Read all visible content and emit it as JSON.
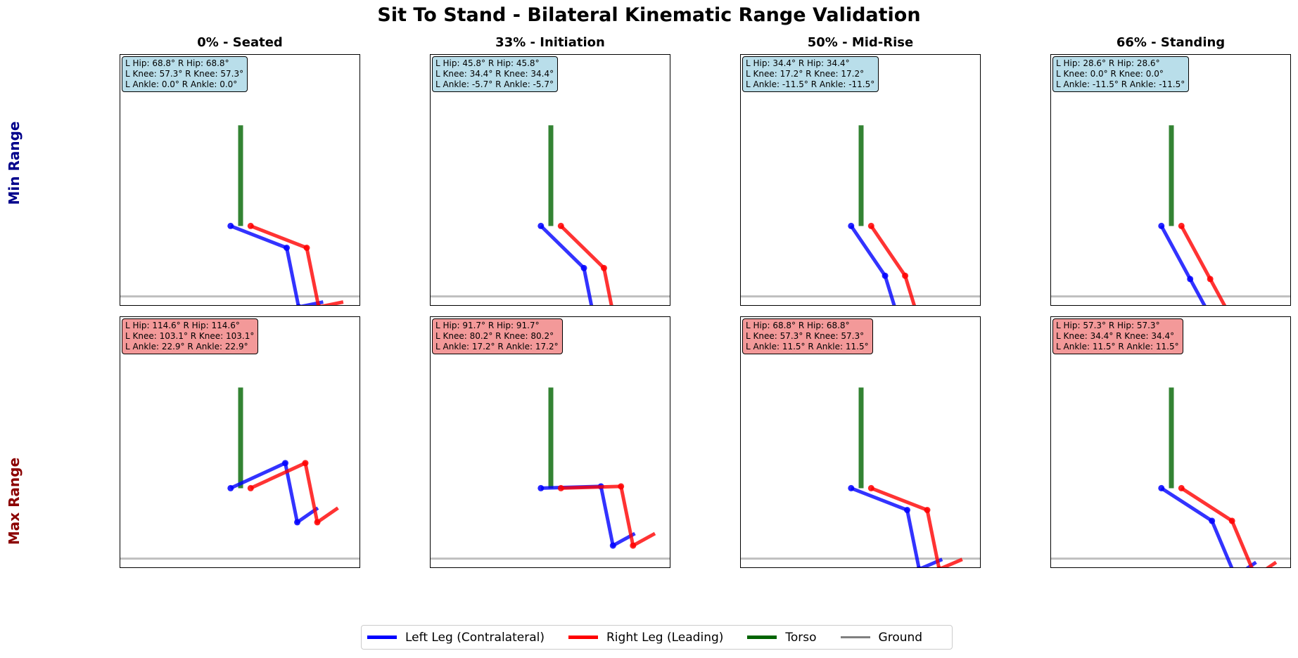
{
  "figure": {
    "title": "Sit To Stand - Bilateral Kinematic Range Validation"
  },
  "rows": [
    {
      "label": "Min Range",
      "color": "#00008b"
    },
    {
      "label": "Max Range",
      "color": "#8b0000"
    }
  ],
  "columns": [
    {
      "title": "0% - Seated"
    },
    {
      "title": "33% - Initiation"
    },
    {
      "title": "50% - Mid-Rise"
    },
    {
      "title": "66% - Standing"
    }
  ],
  "colors": {
    "left_leg": "#0000ff",
    "right_leg": "#ff0000",
    "torso": "#006400",
    "ground": "#808080",
    "min_box": "#add8e6",
    "max_box": "#f08080"
  },
  "legend": [
    {
      "label": "Left Leg (Contralateral)",
      "color": "#0000ff"
    },
    {
      "label": "Right Leg (Leading)",
      "color": "#ff0000"
    },
    {
      "label": "Torso",
      "color": "#006400"
    },
    {
      "label": "Ground",
      "color": "#808080"
    }
  ],
  "chart_data": {
    "type": "line",
    "title": "Sit To Stand - Bilateral Kinematic Range Validation",
    "segment_lengths": {
      "torso": 1.0,
      "thigh": 0.6,
      "shank": 0.6,
      "foot": 0.25
    },
    "ground_y": -0.7,
    "xlim": [
      -1.2,
      1.2
    ],
    "ylim": [
      -0.8,
      1.7
    ],
    "grid": false,
    "legend_position": "bottom-center",
    "panels": [
      {
        "row": 0,
        "col": 0,
        "range": "min",
        "title": "0% - Seated",
        "angles": {
          "l_hip": 68.8,
          "r_hip": 68.8,
          "l_knee": 57.3,
          "r_knee": 57.3,
          "l_ankle": 0.0,
          "r_ankle": 0.0
        },
        "lines": [
          "L Hip: 68.8°  R Hip: 68.8°",
          "L Knee: 57.3°  R Knee: 57.3°",
          "L Ankle: 0.0°  R Ankle: 0.0°"
        ]
      },
      {
        "row": 0,
        "col": 1,
        "range": "min",
        "title": "33% - Initiation",
        "angles": {
          "l_hip": 45.8,
          "r_hip": 45.8,
          "l_knee": 34.4,
          "r_knee": 34.4,
          "l_ankle": -5.7,
          "r_ankle": -5.7
        },
        "lines": [
          "L Hip: 45.8°  R Hip: 45.8°",
          "L Knee: 34.4°  R Knee: 34.4°",
          "L Ankle: -5.7°  R Ankle: -5.7°"
        ]
      },
      {
        "row": 0,
        "col": 2,
        "range": "min",
        "title": "50% - Mid-Rise",
        "angles": {
          "l_hip": 34.4,
          "r_hip": 34.4,
          "l_knee": 17.2,
          "r_knee": 17.2,
          "l_ankle": -11.5,
          "r_ankle": -11.5
        },
        "lines": [
          "L Hip: 34.4°  R Hip: 34.4°",
          "L Knee: 17.2°  R Knee: 17.2°",
          "L Ankle: -11.5°  R Ankle: -11.5°"
        ]
      },
      {
        "row": 0,
        "col": 3,
        "range": "min",
        "title": "66% - Standing",
        "angles": {
          "l_hip": 28.6,
          "r_hip": 28.6,
          "l_knee": 0.0,
          "r_knee": 0.0,
          "l_ankle": -11.5,
          "r_ankle": -11.5
        },
        "lines": [
          "L Hip: 28.6°  R Hip: 28.6°",
          "L Knee: 0.0°  R Knee: 0.0°",
          "L Ankle: -11.5°  R Ankle: -11.5°"
        ]
      },
      {
        "row": 1,
        "col": 0,
        "range": "max",
        "title": "0% - Seated",
        "angles": {
          "l_hip": 114.6,
          "r_hip": 114.6,
          "l_knee": 103.1,
          "r_knee": 103.1,
          "l_ankle": 22.9,
          "r_ankle": 22.9
        },
        "lines": [
          "L Hip: 114.6°  R Hip: 114.6°",
          "L Knee: 103.1°  R Knee: 103.1°",
          "L Ankle: 22.9°  R Ankle: 22.9°"
        ]
      },
      {
        "row": 1,
        "col": 1,
        "range": "max",
        "title": "33% - Initiation",
        "angles": {
          "l_hip": 91.7,
          "r_hip": 91.7,
          "l_knee": 80.2,
          "r_knee": 80.2,
          "l_ankle": 17.2,
          "r_ankle": 17.2
        },
        "lines": [
          "L Hip: 91.7°  R Hip: 91.7°",
          "L Knee: 80.2°  R Knee: 80.2°",
          "L Ankle: 17.2°  R Ankle: 17.2°"
        ]
      },
      {
        "row": 1,
        "col": 2,
        "range": "max",
        "title": "50% - Mid-Rise",
        "angles": {
          "l_hip": 68.8,
          "r_hip": 68.8,
          "l_knee": 57.3,
          "r_knee": 57.3,
          "l_ankle": 11.5,
          "r_ankle": 11.5
        },
        "lines": [
          "L Hip: 68.8°  R Hip: 68.8°",
          "L Knee: 57.3°  R Knee: 57.3°",
          "L Ankle: 11.5°  R Ankle: 11.5°"
        ]
      },
      {
        "row": 1,
        "col": 3,
        "range": "max",
        "title": "66% - Standing",
        "angles": {
          "l_hip": 57.3,
          "r_hip": 57.3,
          "l_knee": 34.4,
          "r_knee": 34.4,
          "l_ankle": 11.5,
          "r_ankle": 11.5
        },
        "lines": [
          "L Hip: 57.3°  R Hip: 57.3°",
          "L Knee: 34.4°  R Knee: 34.4°",
          "L Ankle: 11.5°  R Ankle: 11.5°"
        ]
      }
    ]
  }
}
